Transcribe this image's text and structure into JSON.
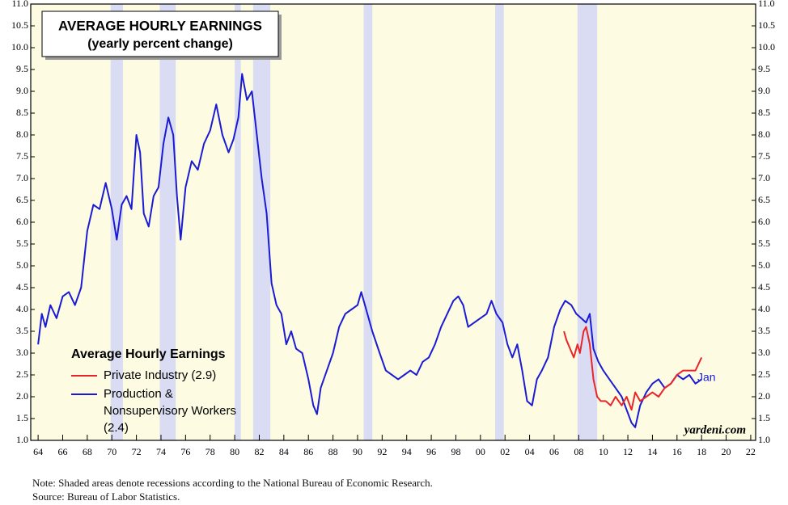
{
  "chart_data": {
    "type": "line",
    "title": "AVERAGE HOURLY EARNINGS",
    "subtitle": "(yearly percent change)",
    "legend_title": "Average Hourly Earnings",
    "annotations": [
      "Jan",
      "yardeni.com"
    ],
    "notes": [
      "Note: Shaded areas denote recessions according to the National Bureau of Economic Research.",
      "Source: Bureau of Labor Statistics."
    ],
    "xlim": [
      1963.4,
      2022.4
    ],
    "xticks": [
      {
        "value": 1964,
        "label": "64"
      },
      {
        "value": 1966,
        "label": "66"
      },
      {
        "value": 1968,
        "label": "68"
      },
      {
        "value": 1970,
        "label": "70"
      },
      {
        "value": 1972,
        "label": "72"
      },
      {
        "value": 1974,
        "label": "74"
      },
      {
        "value": 1976,
        "label": "76"
      },
      {
        "value": 1978,
        "label": "78"
      },
      {
        "value": 1980,
        "label": "80"
      },
      {
        "value": 1982,
        "label": "82"
      },
      {
        "value": 1984,
        "label": "84"
      },
      {
        "value": 1986,
        "label": "86"
      },
      {
        "value": 1988,
        "label": "88"
      },
      {
        "value": 1990,
        "label": "90"
      },
      {
        "value": 1992,
        "label": "92"
      },
      {
        "value": 1994,
        "label": "94"
      },
      {
        "value": 1996,
        "label": "96"
      },
      {
        "value": 1998,
        "label": "98"
      },
      {
        "value": 2000,
        "label": "00"
      },
      {
        "value": 2002,
        "label": "02"
      },
      {
        "value": 2004,
        "label": "04"
      },
      {
        "value": 2006,
        "label": "06"
      },
      {
        "value": 2008,
        "label": "08"
      },
      {
        "value": 2010,
        "label": "10"
      },
      {
        "value": 2012,
        "label": "12"
      },
      {
        "value": 2014,
        "label": "14"
      },
      {
        "value": 2016,
        "label": "16"
      },
      {
        "value": 2018,
        "label": "18"
      },
      {
        "value": 2020,
        "label": "20"
      },
      {
        "value": 2022,
        "label": "22"
      }
    ],
    "ylim": [
      1,
      11
    ],
    "yticks": [
      {
        "value": 1,
        "label": "1.0"
      },
      1.5,
      {
        "value": 2,
        "label": "2.0"
      },
      2.5,
      {
        "value": 3,
        "label": "3.0"
      },
      3.5,
      {
        "value": 4,
        "label": "4.0"
      },
      4.5,
      {
        "value": 5,
        "label": "5.0"
      },
      5.5,
      {
        "value": 6,
        "label": "6.0"
      },
      6.5,
      {
        "value": 7,
        "label": "7.0"
      },
      7.5,
      {
        "value": 8,
        "label": "8.0"
      },
      8.5,
      {
        "value": 9,
        "label": "9.0"
      },
      9.5,
      {
        "value": 10,
        "label": "10.0"
      },
      10.5,
      {
        "value": 11,
        "label": "11.0"
      }
    ],
    "recessions": [
      [
        1969.9,
        1970.9
      ],
      [
        1973.9,
        1975.2
      ],
      [
        1980.0,
        1980.5
      ],
      [
        1981.5,
        1982.9
      ],
      [
        1990.5,
        1991.2
      ],
      [
        2001.2,
        2001.9
      ],
      [
        2007.9,
        2009.5
      ]
    ],
    "recession_color": "#d9dcf3",
    "background_color": "#fdfbe1",
    "series": [
      {
        "name": "Private Industry (2.9)",
        "color": "#e8262a",
        "x": [
          2006.8,
          2007.0,
          2007.3,
          2007.6,
          2007.9,
          2008.1,
          2008.4,
          2008.6,
          2008.9,
          2009.2,
          2009.5,
          2009.8,
          2010.2,
          2010.6,
          2011.0,
          2011.5,
          2011.9,
          2012.3,
          2012.6,
          2013.0,
          2013.5,
          2014.0,
          2014.5,
          2015.0,
          2015.5,
          2016.0,
          2016.5,
          2017.0,
          2017.5,
          2018.0
        ],
        "values": [
          3.5,
          3.3,
          3.1,
          2.9,
          3.2,
          3.0,
          3.5,
          3.6,
          3.2,
          2.4,
          2.0,
          1.9,
          1.9,
          1.8,
          2.0,
          1.8,
          2.0,
          1.7,
          2.1,
          1.9,
          2.0,
          2.1,
          2.0,
          2.2,
          2.3,
          2.5,
          2.6,
          2.6,
          2.6,
          2.9
        ]
      },
      {
        "name": "Production & Nonsupervisory Workers (2.4)",
        "color": "#1b1bd6",
        "x": [
          1964.0,
          1964.3,
          1964.6,
          1965.0,
          1965.5,
          1966.0,
          1966.5,
          1967.0,
          1967.5,
          1968.0,
          1968.5,
          1969.0,
          1969.5,
          1970.0,
          1970.4,
          1970.8,
          1971.2,
          1971.6,
          1972.0,
          1972.3,
          1972.6,
          1973.0,
          1973.4,
          1973.8,
          1974.2,
          1974.6,
          1975.0,
          1975.3,
          1975.6,
          1976.0,
          1976.5,
          1977.0,
          1977.5,
          1978.0,
          1978.5,
          1979.0,
          1979.5,
          1979.9,
          1980.3,
          1980.6,
          1981.0,
          1981.4,
          1981.8,
          1982.2,
          1982.6,
          1983.0,
          1983.4,
          1983.8,
          1984.2,
          1984.6,
          1985.0,
          1985.5,
          1986.0,
          1986.4,
          1986.7,
          1987.0,
          1987.5,
          1988.0,
          1988.5,
          1989.0,
          1989.5,
          1990.0,
          1990.3,
          1990.8,
          1991.2,
          1991.8,
          1992.3,
          1992.8,
          1993.3,
          1993.8,
          1994.3,
          1994.8,
          1995.3,
          1995.8,
          1996.3,
          1996.8,
          1997.3,
          1997.8,
          1998.2,
          1998.6,
          1999.0,
          1999.5,
          2000.0,
          2000.5,
          2000.9,
          2001.3,
          2001.8,
          2002.2,
          2002.6,
          2003.0,
          2003.4,
          2003.8,
          2004.2,
          2004.6,
          2005.0,
          2005.5,
          2006.0,
          2006.5,
          2006.9,
          2007.4,
          2007.8,
          2008.2,
          2008.6,
          2008.9,
          2009.2,
          2009.6,
          2010.0,
          2010.5,
          2011.0,
          2011.5,
          2011.9,
          2012.3,
          2012.6,
          2013.0,
          2013.5,
          2014.0,
          2014.5,
          2015.0,
          2015.5,
          2016.0,
          2016.5,
          2017.0,
          2017.5,
          2018.0
        ],
        "values": [
          3.2,
          3.9,
          3.6,
          4.1,
          3.8,
          4.3,
          4.4,
          4.1,
          4.5,
          5.8,
          6.4,
          6.3,
          6.9,
          6.3,
          5.6,
          6.4,
          6.6,
          6.3,
          8.0,
          7.6,
          6.2,
          5.9,
          6.6,
          6.8,
          7.8,
          8.4,
          8.0,
          6.6,
          5.6,
          6.8,
          7.4,
          7.2,
          7.8,
          8.1,
          8.7,
          8.0,
          7.6,
          7.9,
          8.4,
          9.4,
          8.8,
          9.0,
          8.0,
          7.0,
          6.2,
          4.6,
          4.1,
          3.9,
          3.2,
          3.5,
          3.1,
          3.0,
          2.4,
          1.8,
          1.6,
          2.2,
          2.6,
          3.0,
          3.6,
          3.9,
          4.0,
          4.1,
          4.4,
          3.9,
          3.5,
          3.0,
          2.6,
          2.5,
          2.4,
          2.5,
          2.6,
          2.5,
          2.8,
          2.9,
          3.2,
          3.6,
          3.9,
          4.2,
          4.3,
          4.1,
          3.6,
          3.7,
          3.8,
          3.9,
          4.2,
          3.9,
          3.7,
          3.2,
          2.9,
          3.2,
          2.6,
          1.9,
          1.8,
          2.4,
          2.6,
          2.9,
          3.6,
          4.0,
          4.2,
          4.1,
          3.9,
          3.8,
          3.7,
          3.9,
          3.1,
          2.8,
          2.6,
          2.4,
          2.2,
          2.0,
          1.7,
          1.4,
          1.3,
          1.8,
          2.1,
          2.3,
          2.4,
          2.2,
          2.3,
          2.5,
          2.4,
          2.5,
          2.3,
          2.4
        ]
      }
    ]
  }
}
